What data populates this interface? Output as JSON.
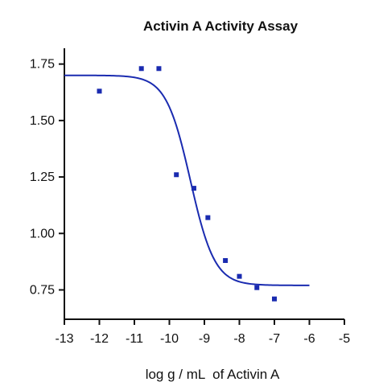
{
  "chart_data": {
    "type": "scatter",
    "title": "Activin A Activity Assay",
    "xlabel": "log g / mL  of Activin A",
    "ylabel": "",
    "xlim": [
      -13,
      -5
    ],
    "ylim": [
      0.62,
      1.82
    ],
    "x_ticks": [
      -13,
      -12,
      -11,
      -10,
      -9,
      -8,
      -7,
      -6,
      -5
    ],
    "y_ticks": [
      0.75,
      1.0,
      1.25,
      1.5,
      1.75
    ],
    "x_tick_labels": [
      "-13",
      "-12",
      "-11",
      "-10",
      "-9",
      "-8",
      "-7",
      "-6",
      "-5"
    ],
    "y_tick_labels": [
      "0.75",
      "1.00",
      "1.25",
      "1.50",
      "1.75"
    ],
    "grid": false,
    "colors": {
      "series": "#1a2bb0",
      "axis": "#111111"
    },
    "series": [
      {
        "kind": "points",
        "x": [
          -12.0,
          -10.8,
          -10.3,
          -9.8,
          -9.3,
          -8.9,
          -8.4,
          -8.0,
          -7.5,
          -7.0
        ],
        "y": [
          1.63,
          1.73,
          1.73,
          1.26,
          1.2,
          1.07,
          0.88,
          0.81,
          0.76,
          0.71
        ]
      },
      {
        "kind": "fit_curve",
        "x_range": [
          -13,
          -6
        ],
        "top": 1.7,
        "bottom": 0.77,
        "log_ec50": -9.4,
        "hill": 1.25
      }
    ]
  }
}
